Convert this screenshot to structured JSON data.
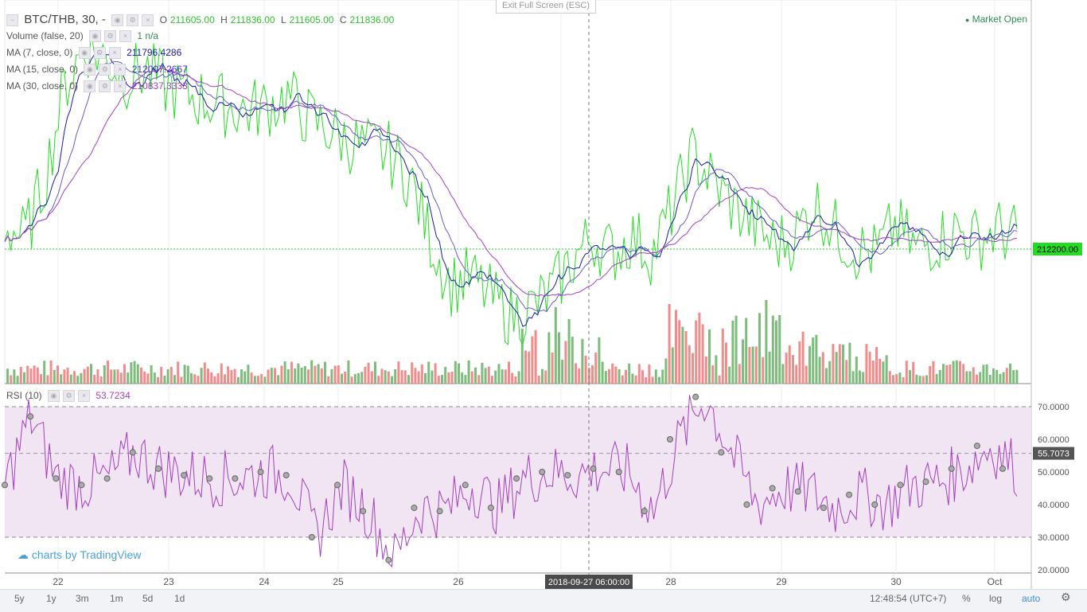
{
  "header": {
    "symbol": "BTC/THB, 30, -",
    "o_label": "O",
    "o_value": "211605.00",
    "h_label": "H",
    "h_value": "211836.00",
    "l_label": "L",
    "l_value": "211605.00",
    "c_label": "C",
    "c_value": "211836.00",
    "exit_fullscreen": "Exit Full Screen (ESC)",
    "market_status": "Market Open"
  },
  "indicators": [
    {
      "label": "Volume (false, 20)",
      "value": "1 n/a",
      "color": "#2e8b57"
    },
    {
      "label": "MA (7, close, 0)",
      "value": "211796.4286",
      "color": "#1a1aa6"
    },
    {
      "label": "MA (15, close, 0)",
      "value": "212007.2667",
      "color": "#4b2fc4"
    },
    {
      "label": "MA (30, close, 0)",
      "value": "210837.3333",
      "color": "#a43fc0"
    }
  ],
  "rsi": {
    "label": "RSI (10)",
    "value": "53.7234"
  },
  "price_tag": "212200.00",
  "rsi_tag": "55.7073",
  "rsi_ticks": [
    "70.0000",
    "60.0000",
    "50.0000",
    "40.0000",
    "30.0000",
    "20.0000"
  ],
  "cursor_time": "2018-09-27 06:00:00",
  "brand": "charts by TradingView",
  "timeframes": [
    "5y",
    "1y",
    "3m",
    "1m",
    "5d",
    "1d"
  ],
  "bottom_right": {
    "clock": "12:48:54 (UTC+7)",
    "pct": "%",
    "log": "log",
    "auto": "auto"
  },
  "colors": {
    "price": "#22dd22",
    "ma7": "#1a1aa6",
    "ma15": "#6a5acd",
    "ma30": "#a43fc0",
    "vol_up": "#6fb56f",
    "vol_down": "#f08080",
    "rsi": "#a43fc0",
    "rsi_band": "#f1e4f3"
  },
  "chart_data": {
    "type": "line",
    "x_ticks": [
      "22",
      "23",
      "24",
      "25",
      "26",
      "27",
      "28",
      "29",
      "30",
      "Oct"
    ],
    "price_reference": 212200.0,
    "price_path": [
      [
        0,
        0.1
      ],
      [
        0.02,
        0.05
      ],
      [
        0.04,
        0.3
      ],
      [
        0.06,
        0.7
      ],
      [
        0.08,
        0.85
      ],
      [
        0.1,
        0.8
      ],
      [
        0.12,
        0.72
      ],
      [
        0.14,
        0.75
      ],
      [
        0.16,
        0.68
      ],
      [
        0.18,
        0.65
      ],
      [
        0.2,
        0.62
      ],
      [
        0.22,
        0.6
      ],
      [
        0.24,
        0.58
      ],
      [
        0.26,
        0.6
      ],
      [
        0.28,
        0.64
      ],
      [
        0.3,
        0.55
      ],
      [
        0.32,
        0.5
      ],
      [
        0.34,
        0.45
      ],
      [
        0.36,
        0.42
      ],
      [
        0.38,
        0.4
      ],
      [
        0.4,
        0.3
      ],
      [
        0.42,
        0.05
      ],
      [
        0.44,
        -0.15
      ],
      [
        0.46,
        -0.12
      ],
      [
        0.48,
        -0.2
      ],
      [
        0.5,
        -0.28
      ],
      [
        0.52,
        -0.25
      ],
      [
        0.54,
        -0.18
      ],
      [
        0.56,
        -0.05
      ],
      [
        0.58,
        0.05
      ],
      [
        0.6,
        -0.02
      ],
      [
        0.62,
        0.05
      ],
      [
        0.64,
        -0.02
      ],
      [
        0.66,
        0.18
      ],
      [
        0.68,
        0.4
      ],
      [
        0.7,
        0.28
      ],
      [
        0.72,
        0.18
      ],
      [
        0.74,
        0.1
      ],
      [
        0.76,
        0.02
      ],
      [
        0.78,
        0.05
      ],
      [
        0.8,
        0.2
      ],
      [
        0.82,
        0.08
      ],
      [
        0.84,
        0.0
      ],
      [
        0.86,
        -0.02
      ],
      [
        0.88,
        0.1
      ],
      [
        0.9,
        0.0
      ],
      [
        0.92,
        0.04
      ],
      [
        0.94,
        0.08
      ],
      [
        0.96,
        0.04
      ],
      [
        0.98,
        0.08
      ],
      [
        1.0,
        0.05
      ]
    ],
    "rsi_values": [
      46,
      67,
      48,
      46,
      48,
      56,
      51,
      49,
      48,
      48,
      50,
      49,
      30,
      46,
      38,
      23,
      39,
      38,
      46,
      39,
      48,
      50,
      49,
      51,
      50,
      38,
      60,
      73,
      56,
      40,
      45,
      44,
      39,
      43,
      40,
      46,
      47,
      51,
      58,
      51
    ]
  }
}
